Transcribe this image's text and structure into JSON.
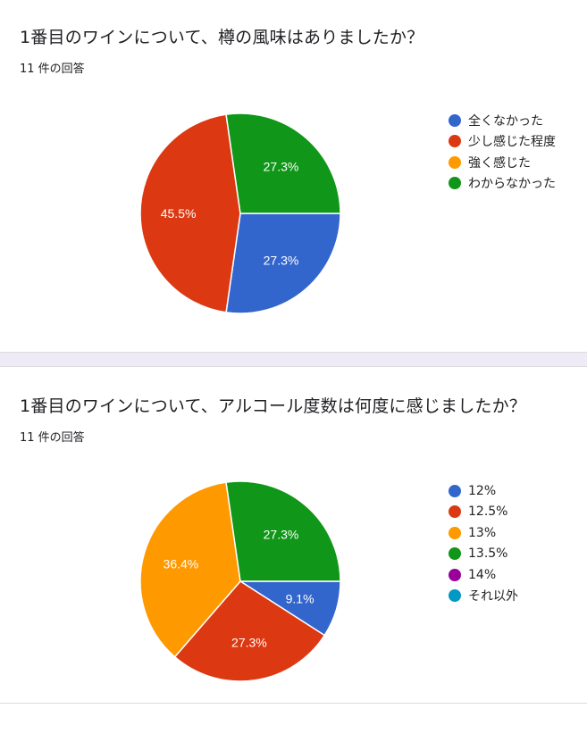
{
  "questions": [
    {
      "title": "1番目のワインについて、樽の風味はありましたか？",
      "count": "11 件の回答"
    },
    {
      "title": "1番目のワインについて、アルコール度数は何度に感じましたか？",
      "count": "11 件の回答"
    }
  ],
  "chart_data": [
    {
      "type": "pie",
      "categories": [
        "全くなかった",
        "少し感じた程度",
        "強く感じた",
        "わからなかった"
      ],
      "values": [
        27.3,
        45.5,
        0,
        27.3
      ],
      "data_labels": [
        "27.3%",
        "45.5%",
        "",
        "27.3%"
      ],
      "colors": [
        "#3366cc",
        "#dc3912",
        "#ff9900",
        "#109618"
      ],
      "legend": "right"
    },
    {
      "type": "pie",
      "categories": [
        "12%",
        "12.5%",
        "13%",
        "13.5%",
        "14%",
        "それ以外"
      ],
      "values": [
        9.1,
        27.3,
        36.4,
        27.3,
        0,
        0
      ],
      "data_labels": [
        "9.1%",
        "27.3%",
        "36.4%",
        "27.3%",
        "",
        ""
      ],
      "colors": [
        "#3366cc",
        "#dc3912",
        "#ff9900",
        "#109618",
        "#990099",
        "#0099c6"
      ],
      "legend": "right"
    }
  ]
}
